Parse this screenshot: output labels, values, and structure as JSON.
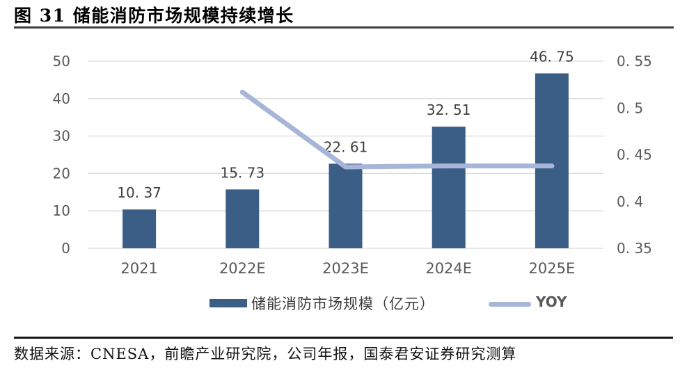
{
  "title": "图 31 储能消防市场规模持续增长",
  "source": "数据来源：CNESA，前瞻产业研究院，公司年报，国泰君安证券研究测算",
  "legend": {
    "bar_label": "储能消防市场规模（亿元）",
    "line_label": "YOY"
  },
  "colors": {
    "bar": "#3A5E86",
    "line": "#A7B5D8",
    "grid": "#D9D9D9",
    "tick_label": "#595959",
    "value_label": "#3F3F3F"
  },
  "chart_data": {
    "type": "bar",
    "title": "储能消防市场规模持续增长",
    "categories": [
      "2021",
      "2022E",
      "2023E",
      "2024E",
      "2025E"
    ],
    "series": [
      {
        "name": "储能消防市场规模（亿元）",
        "type": "bar",
        "axis": "left",
        "values": [
          10.37,
          15.73,
          22.61,
          32.51,
          46.75
        ]
      },
      {
        "name": "YOY",
        "type": "line",
        "axis": "right",
        "x_indices": [
          1,
          2,
          3,
          4
        ],
        "values": [
          0.517,
          0.437,
          0.438,
          0.438
        ]
      }
    ],
    "left_axis": {
      "min": 0,
      "max": 50,
      "ticks": [
        0,
        10,
        20,
        30,
        40,
        50
      ]
    },
    "right_axis": {
      "min": 0.35,
      "max": 0.55,
      "ticks": [
        0.35,
        0.4,
        0.45,
        0.5,
        0.55
      ]
    },
    "grid": "horizontal",
    "legend_position": "bottom",
    "value_labels_shown": true
  }
}
